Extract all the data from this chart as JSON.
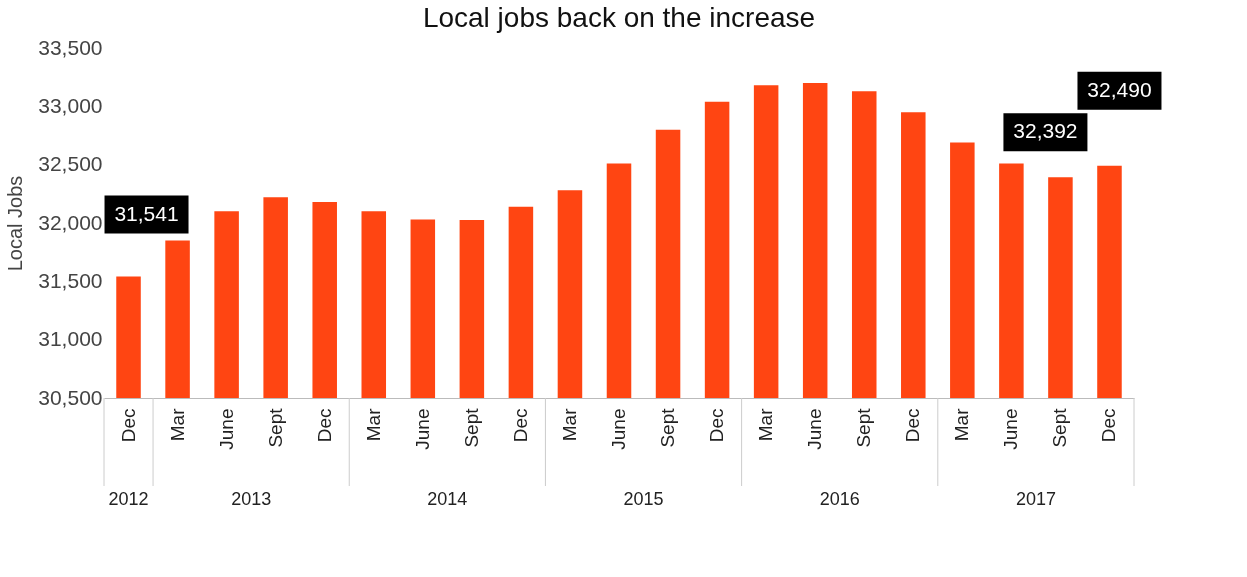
{
  "chart_data": {
    "type": "bar",
    "title": "Local jobs back on the increase",
    "ylabel": "Local Jobs",
    "categories": [
      "Dec",
      "Mar",
      "June",
      "Sept",
      "Dec",
      "Mar",
      "June",
      "Sept",
      "Dec",
      "Mar",
      "June",
      "Sept",
      "Dec",
      "Mar",
      "June",
      "Sept",
      "Dec",
      "Mar",
      "June",
      "Sept",
      "Dec"
    ],
    "series": [
      {
        "color": "#ff4512",
        "values": [
          31541,
          31850,
          32100,
          32220,
          32180,
          32100,
          32030,
          32025,
          32140,
          32280,
          32510,
          32800,
          33040,
          33180,
          33200,
          33130,
          32950,
          32690,
          32510,
          32392,
          32490
        ]
      }
    ],
    "value_labels": [
      "31,541",
      null,
      null,
      null,
      null,
      null,
      null,
      null,
      null,
      null,
      null,
      null,
      null,
      null,
      null,
      null,
      null,
      null,
      null,
      "32,392",
      "32,490"
    ],
    "annotations": [
      "2012",
      "2013",
      "2014",
      "2015",
      "2016",
      "2017"
    ],
    "ylim": [
      30500,
      33500
    ],
    "yticks": [
      {
        "value": 30500,
        "label": "30,500"
      },
      {
        "value": 31000,
        "label": "31,000"
      },
      {
        "value": 31500,
        "label": "31,500"
      },
      {
        "value": 32000,
        "label": "32,000"
      },
      {
        "value": 32500,
        "label": "32,500"
      },
      {
        "value": 33000,
        "label": "33,000"
      },
      {
        "value": 33500,
        "label": "33,500"
      }
    ],
    "grid": false
  }
}
